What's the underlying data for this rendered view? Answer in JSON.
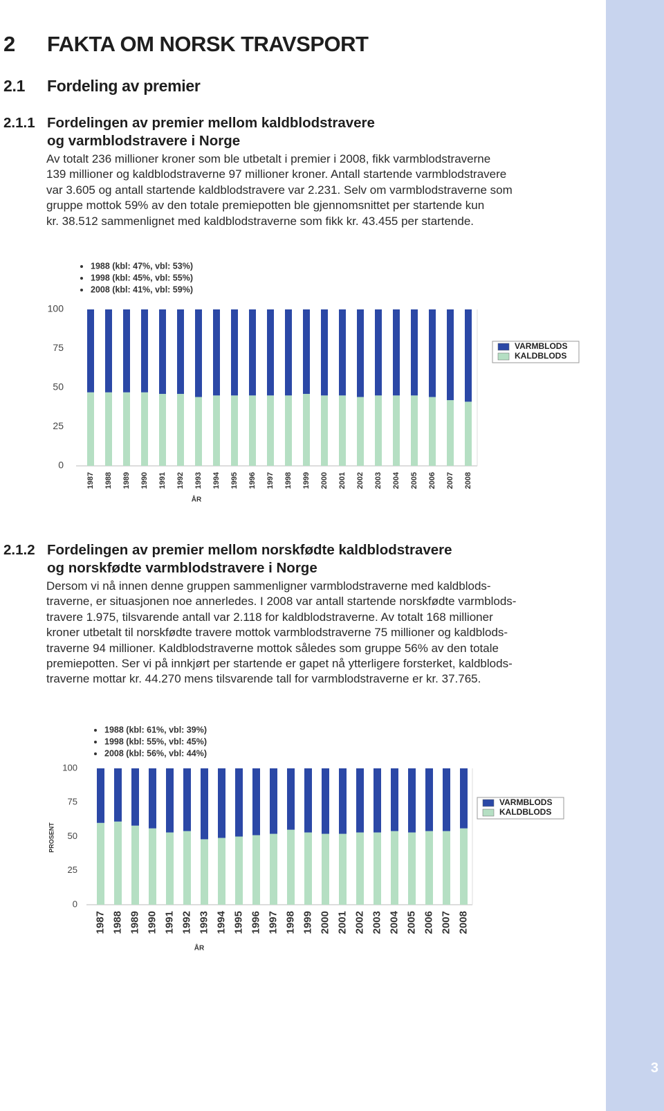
{
  "heading": {
    "number": "2",
    "title": "FAKTA OM NORSK TRAVSPORT"
  },
  "section": {
    "number": "2.1",
    "title": "Fordeling av premier"
  },
  "subsections": [
    {
      "number": "2.1.1",
      "title_lines": [
        "Fordelingen av premier mellom kaldblodstravere",
        "og varmblodstravere i Norge"
      ],
      "body_lines": [
        "Av totalt 236 millioner kroner som ble utbetalt i premier i 2008, fikk varmblodstraverne",
        "139 millioner og kaldblodstraverne 97 millioner kroner. Antall startende varmblodstravere",
        "var 3.605 og antall startende kaldblodstravere var 2.231. Selv om varmblodstraverne som",
        "gruppe mottok 59% av den totale premiepotten ble gjennomsnittet per startende kun",
        "kr. 38.512 sammenlignet med kaldblodstraverne som fikk kr. 43.455 per startende."
      ]
    },
    {
      "number": "2.1.2",
      "title_lines": [
        "Fordelingen av premier mellom norskfødte kaldblodstravere",
        "og norskfødte varmblodstravere i Norge"
      ],
      "body_lines": [
        "Dersom vi nå innen denne gruppen sammenligner varmblodstraverne med kaldblods-",
        "traverne, er situasjonen noe annerledes. I 2008 var antall startende norskfødte varmblods-",
        "travere 1.975, tilsvarende antall var 2.118 for kaldblodstraverne. Av totalt 168 millioner",
        "kroner utbetalt til norskfødte travere mottok varmblodstraverne 75 millioner og kaldblods-",
        "traverne 94 millioner. Kaldblodstraverne mottok således som gruppe 56% av den totale",
        "premiepotten. Ser vi på innkjørt per startende er gapet nå ytterligere forsterket, kaldblods-",
        "traverne mottar kr. 44.270 mens tilsvarende tall for varmblodstraverne er kr. 37.765."
      ]
    }
  ],
  "page_number": "3",
  "chart_data": [
    {
      "type": "stacked-bar",
      "annotations": [
        "1988 (kbl: 47%, vbl: 53%)",
        "1998 (kbl: 45%, vbl: 55%)",
        "2008 (kbl: 41%, vbl: 59%)"
      ],
      "x_label": "ÅR",
      "categories": [
        "1987",
        "1988",
        "1989",
        "1990",
        "1991",
        "1992",
        "1993",
        "1994",
        "1995",
        "1996",
        "1997",
        "1998",
        "1999",
        "2000",
        "2001",
        "2002",
        "2003",
        "2004",
        "2005",
        "2006",
        "2007",
        "2008"
      ],
      "series": [
        {
          "name": "VARMBLODS",
          "color": "#2b48a6",
          "values": [
            53,
            53,
            53,
            53,
            54,
            54,
            56,
            55,
            55,
            55,
            55,
            55,
            54,
            55,
            55,
            56,
            55,
            55,
            55,
            56,
            58,
            59
          ]
        },
        {
          "name": "KALDBLODS",
          "color": "#b5dfc3",
          "values": [
            47,
            47,
            47,
            47,
            46,
            46,
            44,
            45,
            45,
            45,
            45,
            45,
            46,
            45,
            45,
            44,
            45,
            45,
            45,
            44,
            42,
            41
          ]
        }
      ],
      "ylim": [
        0,
        100
      ],
      "yticks": [
        0,
        25,
        50,
        75,
        100
      ],
      "grid": false
    },
    {
      "type": "stacked-bar",
      "annotations": [
        "1988 (kbl: 61%, vbl: 39%)",
        "1998 (kbl: 55%, vbl: 45%)",
        "2008 (kbl: 56%, vbl: 44%)"
      ],
      "x_label": "ÅR",
      "y_label": "PROSENT",
      "categories": [
        "1987",
        "1988",
        "1989",
        "1990",
        "1991",
        "1992",
        "1993",
        "1994",
        "1995",
        "1996",
        "1997",
        "1998",
        "1999",
        "2000",
        "2001",
        "2002",
        "2003",
        "2004",
        "2005",
        "2006",
        "2007",
        "2008"
      ],
      "series": [
        {
          "name": "VARMBLODS",
          "color": "#2b48a6",
          "values": [
            40,
            39,
            42,
            44,
            47,
            46,
            52,
            51,
            50,
            49,
            48,
            45,
            47,
            48,
            48,
            47,
            47,
            46,
            47,
            46,
            46,
            44
          ]
        },
        {
          "name": "KALDBLODS",
          "color": "#b5dfc3",
          "values": [
            60,
            61,
            58,
            56,
            53,
            54,
            48,
            49,
            50,
            51,
            52,
            55,
            53,
            52,
            52,
            53,
            53,
            54,
            53,
            54,
            54,
            56
          ]
        }
      ],
      "ylim": [
        0,
        100
      ],
      "yticks": [
        0,
        25,
        50,
        75,
        100
      ],
      "grid": false
    }
  ]
}
